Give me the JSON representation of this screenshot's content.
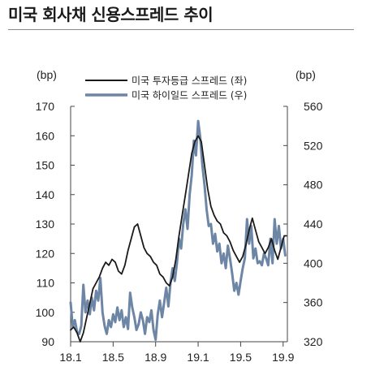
{
  "title": "미국 회사채 신용스프레드 추이",
  "chart_data": {
    "type": "line",
    "y_left_unit": "(bp)",
    "y_right_unit": "(bp)",
    "y_left_lim": [
      90,
      170
    ],
    "y_left_ticks": [
      "90",
      "100",
      "110",
      "120",
      "130",
      "140",
      "150",
      "160",
      "170"
    ],
    "y_right_lim": [
      320,
      560
    ],
    "y_right_ticks": [
      "320",
      "360",
      "400",
      "440",
      "480",
      "520",
      "560"
    ],
    "x_ticks": [
      "18.1",
      "18.5",
      "18.9",
      "19.1",
      "19.5",
      "19.9"
    ],
    "x_tick_positions": [
      0,
      4,
      8,
      12,
      16,
      20
    ],
    "x_range": [
      0,
      20.4
    ],
    "legend_position": "top-center",
    "series": [
      {
        "name": "미국 투자등급 스프레드 (좌)",
        "axis": "left",
        "color": "#1a1a1a",
        "x": [
          0,
          0.3,
          0.6,
          0.9,
          1.2,
          1.5,
          1.8,
          2.1,
          2.4,
          2.7,
          3.0,
          3.3,
          3.6,
          3.9,
          4.2,
          4.5,
          4.8,
          5.1,
          5.4,
          5.7,
          6.0,
          6.3,
          6.6,
          6.9,
          7.2,
          7.5,
          7.8,
          8.1,
          8.4,
          8.7,
          9.0,
          9.3,
          9.6,
          9.9,
          10.2,
          10.5,
          10.8,
          11.1,
          11.4,
          11.7,
          12.0,
          12.3,
          12.6,
          12.9,
          13.2,
          13.5,
          13.8,
          14.1,
          14.4,
          14.7,
          15.0,
          15.3,
          15.6,
          15.9,
          16.2,
          16.5,
          16.8,
          17.1,
          17.4,
          17.7,
          18.0,
          18.3,
          18.6,
          18.9,
          19.2,
          19.5,
          19.8,
          20.1,
          20.3
        ],
        "values": [
          94,
          95,
          93,
          90,
          93,
          98,
          103,
          108,
          110,
          112,
          115,
          117,
          116,
          118,
          117,
          114,
          113,
          116,
          121,
          125,
          129,
          130,
          126,
          122,
          120,
          119,
          117,
          116,
          113,
          112,
          110,
          109,
          112,
          118,
          126,
          133,
          140,
          147,
          154,
          158,
          160,
          158,
          150,
          142,
          136,
          133,
          131,
          130,
          127,
          126,
          124,
          121,
          119,
          117,
          119,
          123,
          128,
          132,
          128,
          124,
          122,
          120,
          122,
          125,
          121,
          118,
          122,
          126,
          126
        ]
      },
      {
        "name": "미국 하이일드 스프레드 (우)",
        "axis": "right",
        "color": "#6d86a5",
        "x": [
          0,
          0.2,
          0.4,
          0.6,
          0.8,
          1.0,
          1.2,
          1.4,
          1.6,
          1.8,
          2.0,
          2.2,
          2.4,
          2.6,
          2.8,
          3.0,
          3.2,
          3.4,
          3.6,
          3.8,
          4.0,
          4.2,
          4.4,
          4.6,
          4.8,
          5.0,
          5.2,
          5.4,
          5.6,
          5.8,
          6.0,
          6.2,
          6.4,
          6.6,
          6.8,
          7.0,
          7.2,
          7.4,
          7.6,
          7.8,
          8.0,
          8.2,
          8.4,
          8.6,
          8.8,
          9.0,
          9.2,
          9.4,
          9.6,
          9.8,
          10.0,
          10.2,
          10.4,
          10.6,
          10.8,
          11.0,
          11.2,
          11.4,
          11.6,
          11.8,
          12.0,
          12.2,
          12.4,
          12.6,
          12.8,
          13.0,
          13.2,
          13.4,
          13.6,
          13.8,
          14.0,
          14.2,
          14.4,
          14.6,
          14.8,
          15.0,
          15.2,
          15.4,
          15.6,
          15.8,
          16.0,
          16.2,
          16.4,
          16.6,
          16.8,
          17.0,
          17.2,
          17.4,
          17.6,
          17.8,
          18.0,
          18.2,
          18.4,
          18.6,
          18.8,
          19.0,
          19.2,
          19.4,
          19.6,
          19.8,
          20.0,
          20.2
        ],
        "values": [
          360,
          335,
          342,
          330,
          328,
          336,
          378,
          350,
          362,
          348,
          365,
          352,
          372,
          362,
          385,
          350,
          336,
          328,
          342,
          335,
          348,
          340,
          355,
          342,
          352,
          335,
          345,
          333,
          370,
          355,
          345,
          332,
          338,
          350,
          342,
          328,
          345,
          340,
          352,
          332,
          322,
          348,
          362,
          345,
          360,
          375,
          356,
          380,
          395,
          382,
          400,
          425,
          415,
          440,
          455,
          435,
          470,
          490,
          525,
          510,
          545,
          528,
          500,
          480,
          455,
          438,
          440,
          420,
          430,
          412,
          420,
          400,
          410,
          395,
          418,
          405,
          390,
          372,
          380,
          368,
          382,
          395,
          405,
          445,
          420,
          438,
          405,
          415,
          400,
          402,
          398,
          410,
          405,
          398,
          425,
          400,
          445,
          420,
          438,
          415,
          425,
          408
        ]
      }
    ]
  }
}
